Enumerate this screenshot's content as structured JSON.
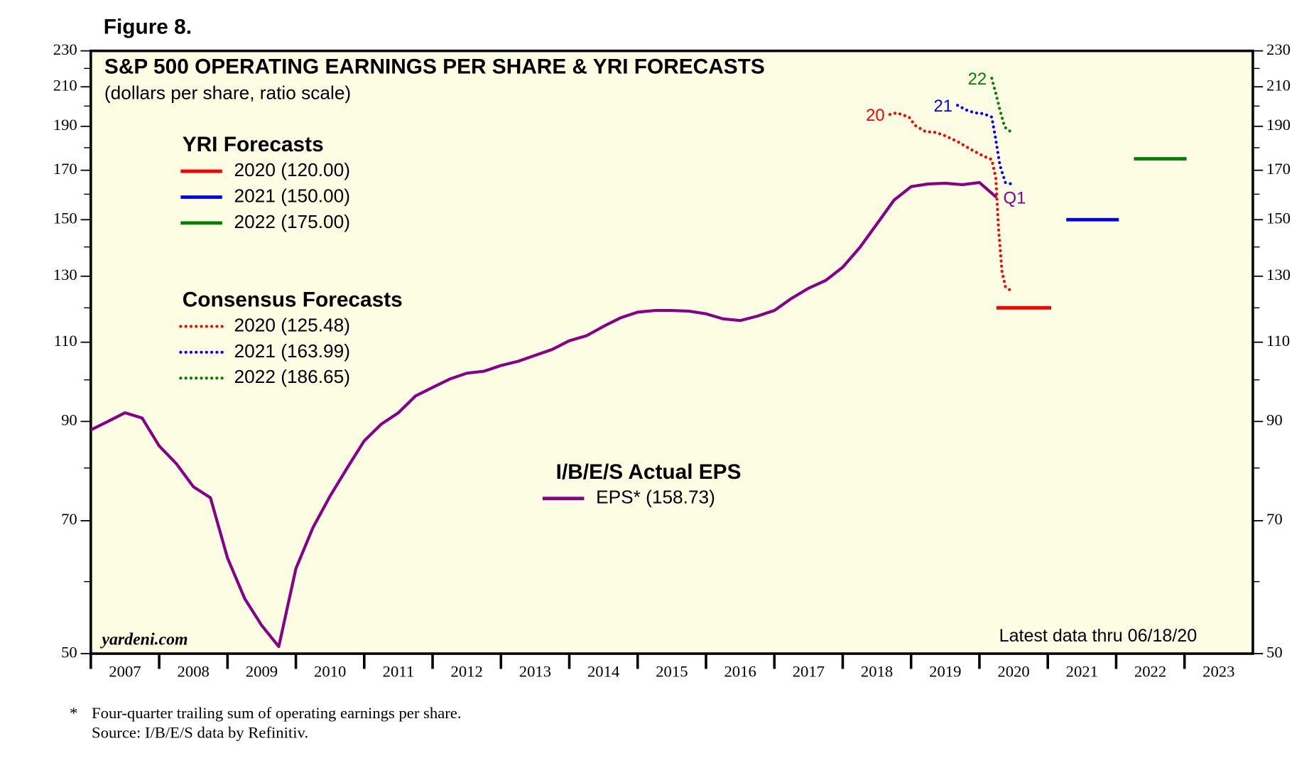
{
  "figure_label": "Figure 8.",
  "chart_data": {
    "type": "line",
    "title": "S&P 500 OPERATING EARNINGS PER SHARE & YRI FORECASTS",
    "subtitle": "(dollars per share, ratio scale)",
    "log_y": true,
    "ylim": [
      50,
      230
    ],
    "yticks": [
      50,
      70,
      90,
      110,
      130,
      150,
      170,
      190,
      210,
      230
    ],
    "yticks_minor": [
      60,
      80,
      100,
      120,
      140,
      160,
      180,
      200,
      220
    ],
    "xlim": [
      2007,
      2024
    ],
    "xticks": [
      2007,
      2008,
      2009,
      2010,
      2011,
      2012,
      2013,
      2014,
      2015,
      2016,
      2017,
      2018,
      2019,
      2020,
      2021,
      2022,
      2023
    ],
    "legend_titles": [
      "YRI Forecasts",
      "Consensus Forecasts",
      "I/B/E/S Actual EPS"
    ],
    "series": [
      {
        "name": "2020 (120.00)",
        "color": "#ff0000",
        "style": "solid",
        "x": [
          2020.25,
          2021.05
        ],
        "values": [
          120,
          120
        ]
      },
      {
        "name": "2021 (150.00)",
        "color": "#0000ff",
        "style": "solid",
        "x": [
          2021.27,
          2022.04
        ],
        "values": [
          150,
          150
        ]
      },
      {
        "name": "2022 (175.00)",
        "color": "#008000",
        "style": "solid",
        "x": [
          2022.26,
          2023.03
        ],
        "values": [
          175,
          175
        ]
      },
      {
        "name": "2020 (125.48)",
        "color": "#ff0000",
        "style": "dotted",
        "x": [
          2018.69,
          2018.79,
          2018.97,
          2019.06,
          2019.21,
          2019.36,
          2019.5,
          2019.68,
          2019.87,
          2020.06,
          2020.18,
          2020.24,
          2020.28,
          2020.33,
          2020.38,
          2020.45
        ],
        "values": [
          195.8,
          196.6,
          194.5,
          190.4,
          187.5,
          187.1,
          185.5,
          182.8,
          179.3,
          176.2,
          174.7,
          166.7,
          146.5,
          131.6,
          126.6,
          125.48
        ]
      },
      {
        "name": "2021 (163.99)",
        "color": "#0000ff",
        "style": "dotted",
        "x": [
          2019.68,
          2019.81,
          2019.93,
          2020.06,
          2020.18,
          2020.23,
          2020.3,
          2020.38,
          2020.5
        ],
        "values": [
          200.4,
          198.0,
          196.6,
          196.2,
          194.5,
          185.5,
          172.1,
          164.8,
          163.99
        ]
      },
      {
        "name": "2022 (186.65)",
        "color": "#008000",
        "style": "dotted",
        "x": [
          2020.18,
          2020.24,
          2020.3,
          2020.37,
          2020.49
        ],
        "values": [
          214.6,
          206.5,
          198.0,
          189.6,
          186.65
        ]
      },
      {
        "name": "EPS* (158.73)",
        "color": "#880088",
        "style": "solid",
        "x": [
          2007.0,
          2007.25,
          2007.5,
          2007.75,
          2008.0,
          2008.25,
          2008.5,
          2008.75,
          2009.0,
          2009.25,
          2009.5,
          2009.75,
          2010.0,
          2010.25,
          2010.5,
          2010.75,
          2011.0,
          2011.25,
          2011.5,
          2011.75,
          2012.0,
          2012.25,
          2012.5,
          2012.75,
          2013.0,
          2013.25,
          2013.5,
          2013.75,
          2014.0,
          2014.25,
          2014.5,
          2014.75,
          2015.0,
          2015.25,
          2015.5,
          2015.75,
          2016.0,
          2016.25,
          2016.5,
          2016.75,
          2017.0,
          2017.25,
          2017.5,
          2017.75,
          2018.0,
          2018.25,
          2018.5,
          2018.75,
          2019.0,
          2019.25,
          2019.5,
          2019.75,
          2020.0,
          2020.25
        ],
        "values": [
          88.1,
          90.0,
          92.0,
          90.8,
          84.6,
          80.9,
          76.3,
          74.2,
          63.7,
          57.5,
          53.7,
          50.9,
          62.0,
          68.8,
          74.5,
          80.0,
          85.7,
          89.4,
          92.0,
          96.0,
          98.1,
          100.2,
          101.7,
          102.2,
          103.7,
          104.8,
          106.4,
          108.0,
          110.4,
          111.8,
          114.5,
          117.0,
          118.7,
          119.2,
          119.2,
          119.0,
          118.2,
          116.7,
          116.2,
          117.5,
          119.2,
          122.9,
          126.1,
          128.6,
          133.0,
          139.8,
          148.4,
          157.6,
          163.1,
          164.2,
          164.5,
          163.9,
          164.8,
          158.73
        ]
      }
    ],
    "annotations": [
      "20",
      "21",
      "22",
      "Q1"
    ],
    "watermark": "yardeni.com",
    "note": "Latest data thru 06/18/20"
  },
  "footnote": {
    "marker": "*",
    "lines": [
      "Four-quarter trailing sum of operating earnings per share.",
      "Source: I/B/E/S data by Refinitiv."
    ]
  }
}
